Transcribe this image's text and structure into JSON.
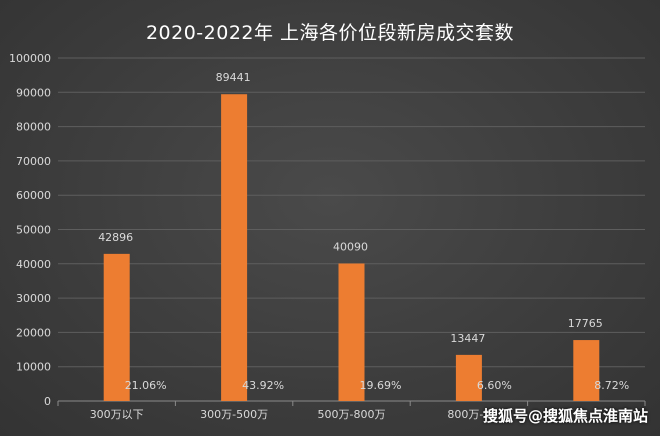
{
  "chart_data": {
    "type": "bar",
    "title": "2020-2022年 上海各价位段新房成交套数",
    "categories": [
      "300万以下",
      "300万-500万",
      "500万-800万",
      "800万-1",
      ""
    ],
    "values": [
      42896,
      89441,
      40090,
      13447,
      17765
    ],
    "value_labels": [
      "42896",
      "89441",
      "40090",
      "13447",
      "17765"
    ],
    "percent_labels": [
      "21.06%",
      "43.92%",
      "19.69%",
      "6.60%",
      "8.72%"
    ],
    "yticks": [
      "0",
      "10000",
      "20000",
      "30000",
      "40000",
      "50000",
      "60000",
      "70000",
      "80000",
      "90000",
      "100000"
    ],
    "ylim": [
      0,
      100000
    ],
    "grid": true,
    "legend": "none",
    "bar_color": "#ed7d31",
    "grid_color": "#5e5e5e"
  },
  "watermark": "搜狐号@搜狐焦点淮南站"
}
